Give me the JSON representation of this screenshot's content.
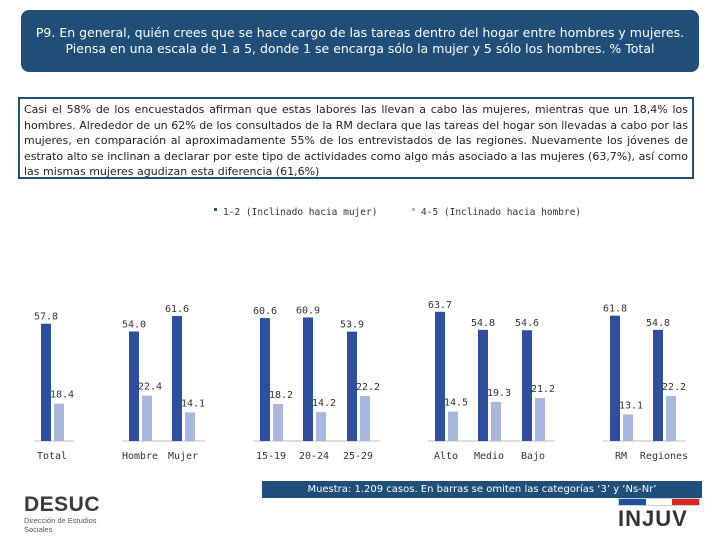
{
  "title": "P9. En general, quién crees que se hace cargo de las tareas dentro del hogar entre hombres y mujeres. Piensa en una escala de 1 a 5, donde 1 se encarga sólo la mujer y 5 sólo los hombres. % Total",
  "description": "Casi el 58% de los encuestados afirman que estas labores las llevan a cabo las mujeres, mientras que un 18,4% los hombres. Alrededor de un 62% de los consultados de la RM declara que las tareas del hogar son llevadas a cabo por las mujeres, en comparación al aproximadamente 55% de los entrevistados de las regiones. Nuevamente los jóvenes de estrato alto se inclinan a declarar por este tipo de actividades como algo más asociado a las mujeres (63,7%), así como las mismas mujeres agudizan esta diferencia (61,6%)",
  "footnote": "Muestra: 1.209 casos. En barras se omiten las categorías ‘3’ y ‘Ns-Nr’",
  "logos": {
    "desuc": "DESUC",
    "desuc_sub": "Dirección de Estudios Sociales",
    "injuv": "INJUV"
  },
  "colors": {
    "header": "#1f4e79",
    "series1": "#2e4f9e",
    "series2": "#a9b6dd",
    "flag": [
      "#1f4e9e",
      "#ffffff",
      "#d52b1e"
    ]
  },
  "chart_data": {
    "type": "bar",
    "categories": [
      "Total",
      "Hombre",
      "Mujer",
      "15-19",
      "20-24",
      "25-29",
      "Alto",
      "Medio",
      "Bajo",
      "RM",
      "Regiones"
    ],
    "series": [
      {
        "name": "1-2 (Inclinado hacia mujer)",
        "values": [
          57.8,
          54.0,
          61.6,
          60.6,
          60.9,
          53.9,
          63.7,
          54.8,
          54.6,
          61.8,
          54.8
        ]
      },
      {
        "name": "4-5 (Inclinado hacia hombre)",
        "values": [
          18.4,
          22.4,
          14.1,
          18.2,
          14.2,
          22.2,
          14.5,
          19.3,
          21.2,
          13.1,
          22.2
        ]
      }
    ],
    "value_labels_1": [
      "57.8",
      "54.0",
      "61.6",
      "60.6",
      "60.9",
      "53.9",
      "63.7",
      "54.8",
      "54.6",
      "61.8",
      "54.8"
    ],
    "value_labels_2": [
      "18.4",
      "22.4",
      "14.1",
      "18.2",
      "14.2",
      "22.2",
      "14.5",
      "19.3",
      "21.2",
      "13.1",
      "22.2"
    ],
    "groups": [
      [
        0
      ],
      [
        1,
        2
      ],
      [
        3,
        4,
        5
      ],
      [
        6,
        7,
        8
      ],
      [
        9,
        10
      ]
    ],
    "legend_position": "top",
    "grid": false,
    "ylim": [
      0,
      70
    ]
  }
}
